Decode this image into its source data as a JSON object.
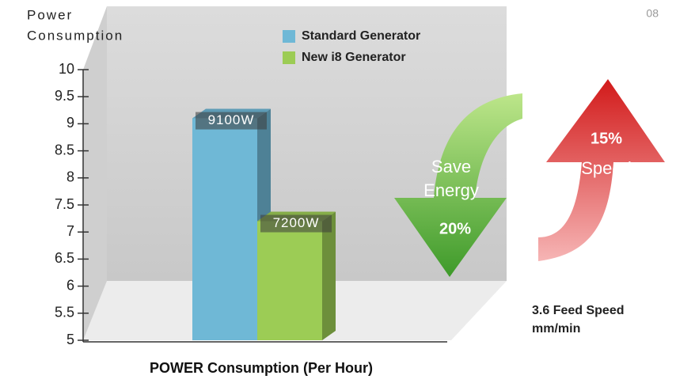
{
  "page_number": "08",
  "chart_data": {
    "type": "bar",
    "ylabel": [
      "Power",
      "Consumption"
    ],
    "xlabel": "POWER Consumption (Per Hour)",
    "categories": [
      null
    ],
    "series": [
      {
        "name": "Standard Generator",
        "color": "#6fb8d6",
        "values": [
          9.1
        ],
        "value_labels": [
          "9100W"
        ]
      },
      {
        "name": "New i8 Generator",
        "color": "#9ccc55",
        "values": [
          7.2
        ],
        "value_labels": [
          "7200W"
        ]
      }
    ],
    "ylim": [
      5,
      10
    ],
    "yticks": [
      5,
      5.5,
      6,
      6.5,
      7,
      7.5,
      8,
      8.5,
      9,
      9.5,
      10
    ],
    "annotations": {
      "save": [
        "Save",
        "Energy",
        "20%"
      ],
      "speed": [
        "15%",
        "Speed"
      ],
      "feed": [
        "3.6 Feed Speed",
        "mm/min"
      ]
    }
  }
}
